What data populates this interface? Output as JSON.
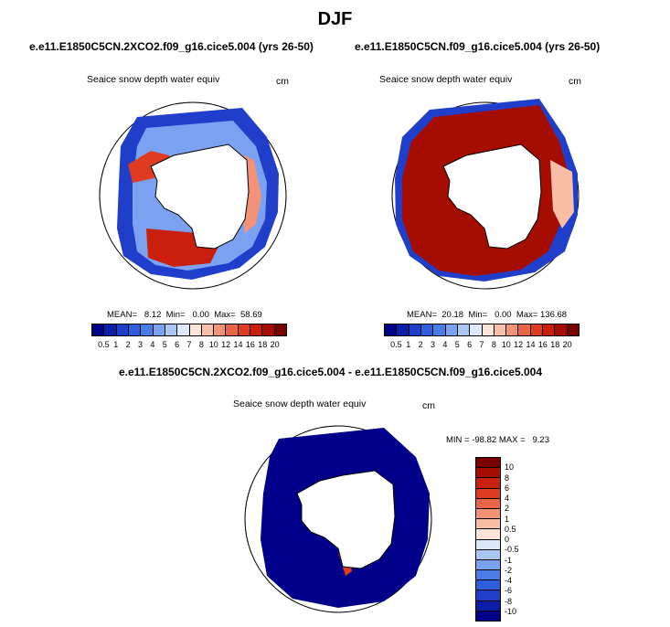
{
  "title": "DJF",
  "panels": [
    {
      "title": "e.e11.E1850C5CN.2XCO2.f09_g16.cice5.004 (yrs 26-50)",
      "variable": "Seaice snow depth water equiv",
      "units": "cm",
      "stats": "MEAN=   8.12  Min=   0.00  Max=  58.69"
    },
    {
      "title": "e.e11.E1850C5CN.f09_g16.cice5.004 (yrs 26-50)",
      "variable": "Seaice snow depth water equiv",
      "units": "cm",
      "stats": "MEAN=  20.18  Min=   0.00  Max= 136.68"
    },
    {
      "title": "e.e11.E1850C5CN.2XCO2.f09_g16.cice5.004 - e.e11.E1850C5CN.f09_g16.cice5.004",
      "variable": "Seaice snow depth water equiv",
      "units": "cm",
      "stats": "MIN = -98.82 MAX =   9.23"
    }
  ],
  "colorbar_abs": {
    "labels": [
      "0.5",
      "1",
      "2",
      "3",
      "4",
      "5",
      "6",
      "7",
      "8",
      "10",
      "12",
      "14",
      "16",
      "18",
      "20"
    ],
    "colors": [
      "#00008b",
      "#0a1ea8",
      "#1f3fcb",
      "#2e5ee0",
      "#4a7ce8",
      "#7aa2f0",
      "#a9c6f5",
      "#dde9fb",
      "#fde4d8",
      "#f8bfa6",
      "#f39276",
      "#ea6446",
      "#df3b1e",
      "#c91f0c",
      "#a40d00",
      "#7a0000"
    ]
  },
  "colorbar_diff": {
    "labels": [
      "10",
      "8",
      "6",
      "4",
      "2",
      "1",
      "0.5",
      "0",
      "-0.5",
      "-1",
      "-2",
      "-4",
      "-6",
      "-8",
      "-10"
    ],
    "colors": [
      "#7a0000",
      "#a40d00",
      "#c91f0c",
      "#df3b1e",
      "#ea6446",
      "#f39276",
      "#f8bfa6",
      "#fde4d8",
      "#dde9fb",
      "#a9c6f5",
      "#7aa2f0",
      "#4a7ce8",
      "#2e5ee0",
      "#1f3fcb",
      "#0a1ea8",
      "#00008b"
    ]
  },
  "colors": {
    "land": "#ffffff",
    "outline": "#000000"
  }
}
